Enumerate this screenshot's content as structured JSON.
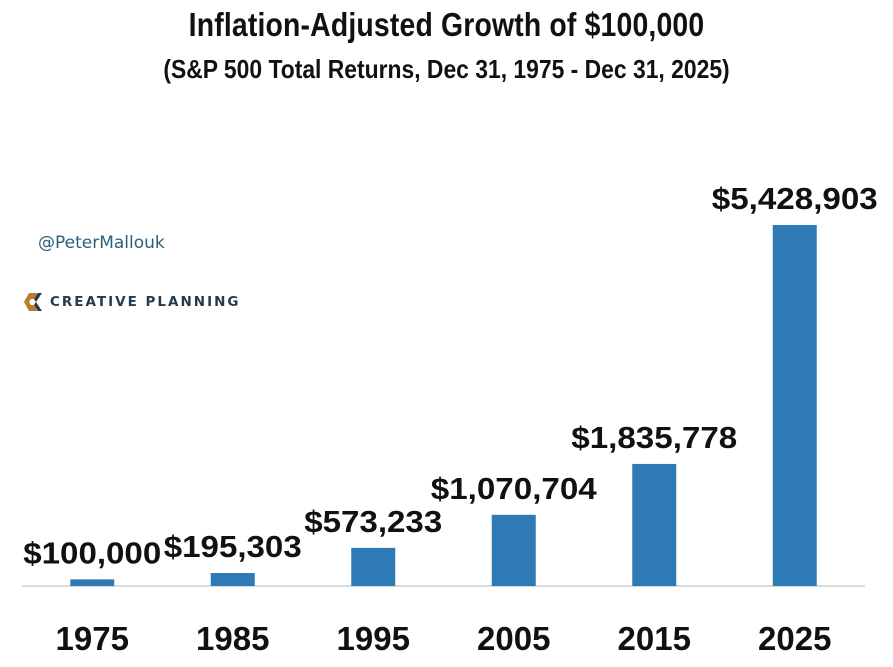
{
  "header": {
    "title": "Inflation-Adjusted Growth of $100,000",
    "subtitle": "(S&P 500 Total Returns, Dec 31, 1975 - Dec 31, 2025)"
  },
  "branding": {
    "handle": "@PeterMallouk",
    "logo_text": "CREATIVE PLANNING",
    "logo_icon": "creative-planning-logo-icon",
    "logo_colors": [
      "#c07a2c",
      "#243a4d"
    ]
  },
  "chart_data": {
    "type": "bar",
    "title": "Inflation-Adjusted Growth of $100,000",
    "subtitle": "(S&P 500 Total Returns, Dec 31, 1975 - Dec 31, 2025)",
    "xlabel": "",
    "ylabel": "",
    "categories": [
      "1975",
      "1985",
      "1995",
      "2005",
      "2015",
      "2025"
    ],
    "values": [
      100000,
      195303,
      573233,
      1070704,
      1835778,
      5428903
    ],
    "data_labels": [
      "$100,000",
      "$195,303",
      "$573,233",
      "$1,070,704",
      "$1,835,778",
      "$5,428,903"
    ],
    "ylim": [
      0,
      5428903
    ],
    "grid": false,
    "legend": "none",
    "bar_color": "#2e7ab4",
    "axis_color": "#cfcfcf"
  }
}
